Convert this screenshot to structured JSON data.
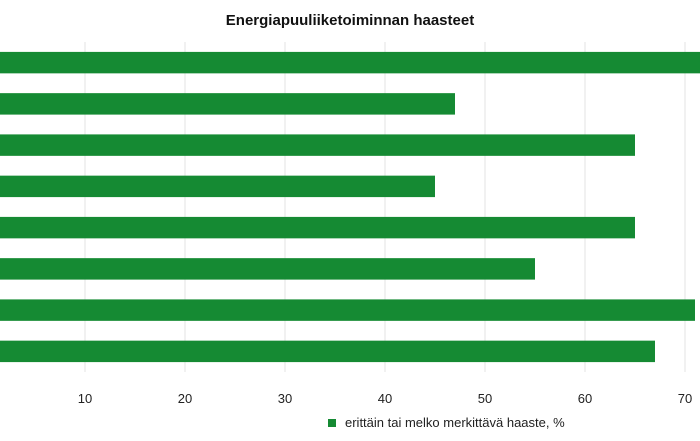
{
  "chart_data": {
    "type": "bar",
    "orientation": "horizontal",
    "title": "Energiapuuliiketoiminnan haasteet",
    "categories": [
      "",
      "",
      "",
      "",
      "",
      "",
      "",
      ""
    ],
    "series": [
      {
        "name": "erittäin tai melko merkittävä haaste, %",
        "values": [
          72,
          47,
          65,
          45,
          65,
          55,
          71,
          67
        ]
      }
    ],
    "x_ticks": [
      10,
      20,
      30,
      40,
      50,
      60,
      70
    ],
    "xlim": [
      1.5,
      71.5
    ],
    "grid": true,
    "legend_position": "bottom",
    "bar_color": "#158a33"
  }
}
